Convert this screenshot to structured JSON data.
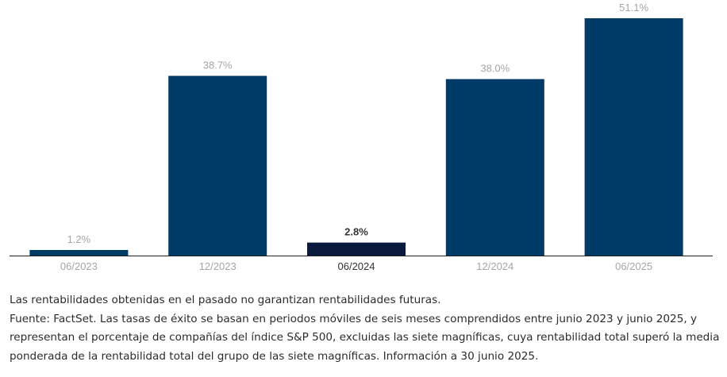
{
  "chart_data": {
    "type": "bar",
    "categories": [
      "06/2023",
      "12/2023",
      "06/2024",
      "12/2024",
      "06/2025"
    ],
    "values": [
      1.2,
      38.7,
      2.8,
      38.0,
      51.1
    ],
    "value_labels": [
      "1.2%",
      "38.7%",
      "2.8%",
      "38.0%",
      "51.1%"
    ],
    "highlight_index": 2,
    "ylim": [
      0,
      51.1
    ],
    "title": "",
    "xlabel": "",
    "ylabel": "",
    "grid": false,
    "colors": {
      "bar": "#003a66",
      "highlight_bar": "#0a1a3e",
      "label": "#a6a6a6",
      "highlight_label": "#333333",
      "axis": "#222222"
    }
  },
  "notes": {
    "disclaimer": "Las rentabilidades obtenidas en el pasado no garantizan rentabilidades futuras.",
    "source": "Fuente: FactSet. Las tasas de éxito se basan en periodos móviles de seis meses comprendidos entre junio 2023 y junio 2025, y representan el porcentaje de compañías del índice S&P 500, excluidas las siete magníficas, cuya rentabilidad total superó la media ponderada de la rentabilidad total del grupo de las siete magníficas. Información a 30 junio 2025."
  }
}
